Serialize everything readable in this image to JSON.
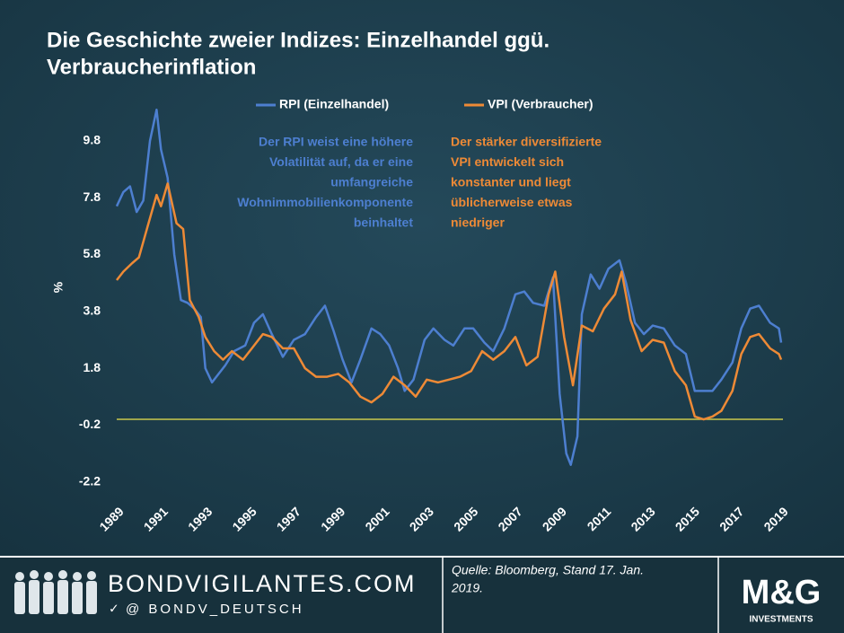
{
  "chart_data": {
    "type": "line",
    "title": [
      "Die Geschichte zweier Indizes: Einzelhandel ggü.",
      "Verbraucherinflation"
    ],
    "y_label": "%",
    "xlim": [
      1989,
      2019
    ],
    "xticks": [
      1989,
      1991,
      1993,
      1995,
      1997,
      1999,
      2001,
      2003,
      2005,
      2007,
      2009,
      2011,
      2013,
      2015,
      2017,
      2019
    ],
    "ylim": [
      -2.4,
      11.0
    ],
    "yticks": [
      -2.2,
      -0.2,
      1.8,
      3.8,
      5.8,
      7.8,
      9.8
    ],
    "reference_line": {
      "value": 0,
      "color": "#c9c84c"
    },
    "series": [
      {
        "name": "RPI (Einzelhandel)",
        "color": "#4d7fd0",
        "x": [
          1989.0,
          1989.3,
          1989.6,
          1989.9,
          1990.2,
          1990.5,
          1990.8,
          1991.0,
          1991.3,
          1991.6,
          1991.9,
          1992.2,
          1992.5,
          1992.8,
          1993.0,
          1993.3,
          1993.6,
          1993.9,
          1994.3,
          1994.8,
          1995.2,
          1995.6,
          1996.0,
          1996.5,
          1997.0,
          1997.5,
          1998.0,
          1998.4,
          1998.8,
          1999.2,
          1999.6,
          2000.0,
          2000.5,
          2000.9,
          2001.3,
          2001.7,
          2002.0,
          2002.4,
          2002.9,
          2003.3,
          2003.8,
          2004.2,
          2004.7,
          2005.1,
          2005.6,
          2006.0,
          2006.5,
          2007.0,
          2007.4,
          2007.8,
          2008.3,
          2008.7,
          2009.0,
          2009.3,
          2009.5,
          2009.8,
          2010.0,
          2010.4,
          2010.8,
          2011.2,
          2011.7,
          2012.0,
          2012.4,
          2012.8,
          2013.2,
          2013.7,
          2014.2,
          2014.7,
          2015.1,
          2015.5,
          2015.9,
          2016.3,
          2016.8,
          2017.2,
          2017.6,
          2018.0,
          2018.5,
          2018.9,
          2019.0
        ],
        "values": [
          7.5,
          8.0,
          8.2,
          7.3,
          7.7,
          9.8,
          10.9,
          9.5,
          8.5,
          5.8,
          4.2,
          4.1,
          3.9,
          3.6,
          1.8,
          1.3,
          1.6,
          1.9,
          2.4,
          2.6,
          3.4,
          3.7,
          3.0,
          2.2,
          2.8,
          3.0,
          3.6,
          4.0,
          3.1,
          2.1,
          1.3,
          2.1,
          3.2,
          3.0,
          2.6,
          1.8,
          1.0,
          1.4,
          2.8,
          3.2,
          2.8,
          2.6,
          3.2,
          3.2,
          2.7,
          2.4,
          3.2,
          4.4,
          4.5,
          4.1,
          4.0,
          5.0,
          0.9,
          -1.2,
          -1.6,
          -0.6,
          3.7,
          5.1,
          4.6,
          5.3,
          5.6,
          4.8,
          3.4,
          3.0,
          3.3,
          3.2,
          2.6,
          2.3,
          1.0,
          1.0,
          1.0,
          1.4,
          2.0,
          3.2,
          3.9,
          4.0,
          3.4,
          3.2,
          2.7
        ]
      },
      {
        "name": "VPI (Verbraucher)",
        "color": "#ee8a36",
        "x": [
          1989.0,
          1989.3,
          1989.7,
          1990.0,
          1990.4,
          1990.8,
          1991.0,
          1991.3,
          1991.7,
          1992.0,
          1992.3,
          1992.7,
          1993.0,
          1993.4,
          1993.8,
          1994.2,
          1994.7,
          1995.1,
          1995.6,
          1996.0,
          1996.5,
          1997.0,
          1997.5,
          1998.0,
          1998.5,
          1999.0,
          1999.5,
          2000.0,
          2000.5,
          2001.0,
          2001.5,
          2002.0,
          2002.5,
          2003.0,
          2003.5,
          2004.0,
          2004.5,
          2005.0,
          2005.5,
          2006.0,
          2006.5,
          2007.0,
          2007.5,
          2008.0,
          2008.5,
          2008.8,
          2009.2,
          2009.6,
          2010.0,
          2010.5,
          2011.0,
          2011.5,
          2011.8,
          2012.2,
          2012.7,
          2013.2,
          2013.7,
          2014.2,
          2014.7,
          2015.1,
          2015.5,
          2015.9,
          2016.3,
          2016.8,
          2017.2,
          2017.6,
          2018.0,
          2018.5,
          2018.9,
          2019.0
        ],
        "values": [
          4.9,
          5.2,
          5.5,
          5.7,
          6.8,
          7.9,
          7.5,
          8.3,
          6.9,
          6.7,
          4.2,
          3.6,
          2.9,
          2.4,
          2.1,
          2.4,
          2.1,
          2.5,
          3.0,
          2.9,
          2.5,
          2.5,
          1.8,
          1.5,
          1.5,
          1.6,
          1.3,
          0.8,
          0.6,
          0.9,
          1.5,
          1.2,
          0.8,
          1.4,
          1.3,
          1.4,
          1.5,
          1.7,
          2.4,
          2.1,
          2.4,
          2.9,
          1.9,
          2.2,
          4.4,
          5.2,
          2.9,
          1.2,
          3.3,
          3.1,
          3.9,
          4.4,
          5.2,
          3.5,
          2.4,
          2.8,
          2.7,
          1.7,
          1.2,
          0.1,
          0.0,
          0.1,
          0.3,
          1.0,
          2.3,
          2.9,
          3.0,
          2.5,
          2.3,
          2.1
        ]
      }
    ],
    "annotations": [
      {
        "lines": [
          "Der RPI weist eine höhere",
          "Volatilität auf, da er eine",
          "umfangreiche",
          "Wohnimmobilienkomponente",
          "beinhaltet"
        ],
        "color": "#4d7fd0"
      },
      {
        "lines": [
          "Der stärker diversifizierte",
          "VPI entwickelt sich",
          "konstanter und liegt",
          "üblicherweise etwas",
          "niedriger"
        ],
        "color": "#ee8a36"
      }
    ]
  },
  "footer": {
    "site": "BONDVIGILANTES.COM",
    "handle": "@ BONDV_DEUTSCH",
    "source": [
      "Quelle: Bloomberg, Stand 17. Jan.",
      "2019."
    ],
    "logo": "M&G",
    "logo_sub": "INVESTMENTS"
  }
}
